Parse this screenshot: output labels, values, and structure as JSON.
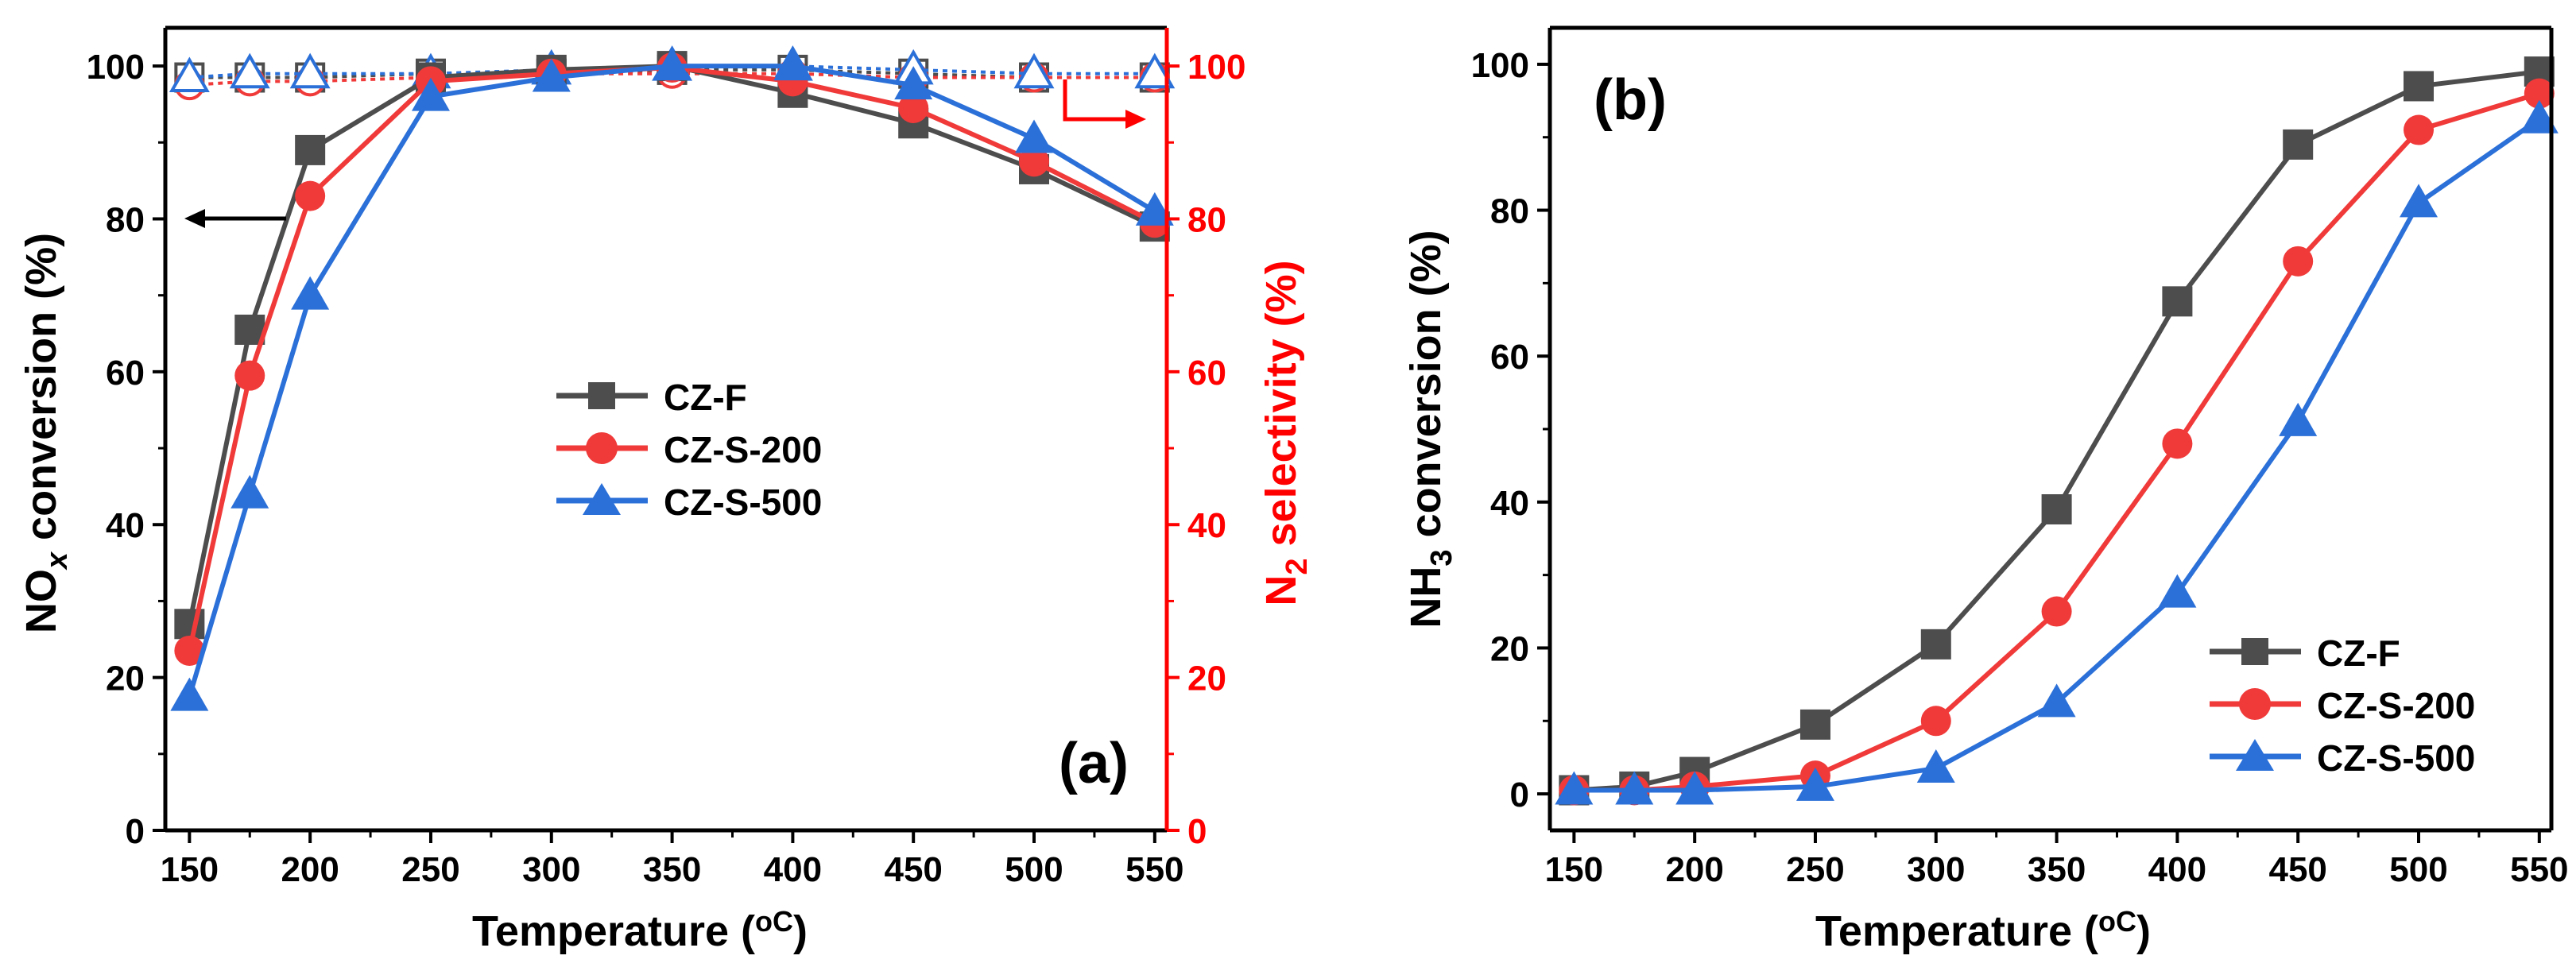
{
  "colors": {
    "axis": "#000000",
    "secondary_axis": "#ff0000",
    "cz_f": "#4d4d4d",
    "cz_s_200": "#f03a3a",
    "cz_s_500": "#2b70d8"
  },
  "chart_data": [
    {
      "type": "line",
      "panel_label": "(a)",
      "xlabel": "Temperature (",
      "xlabel_unit": "oC",
      "xlabel_close": ")",
      "ylabel_prefix": "NO",
      "ylabel_sub": "x",
      "ylabel_suffix": " conversion (%)",
      "y2label_prefix": "N",
      "y2label_sub": "2",
      "y2label_suffix": " selectivity (%)",
      "x": [
        150,
        175,
        200,
        250,
        300,
        350,
        400,
        450,
        500,
        550
      ],
      "xticks": [
        "150",
        "200",
        "250",
        "300",
        "350",
        "400",
        "450",
        "500",
        "550"
      ],
      "yticks": [
        "0",
        "20",
        "40",
        "60",
        "80",
        "100"
      ],
      "y2ticks": [
        "0",
        "20",
        "40",
        "60",
        "80",
        "100"
      ],
      "xlim": [
        140,
        555
      ],
      "ylim": [
        0,
        105
      ],
      "y2lim": [
        0,
        105
      ],
      "legend_position": "center-left",
      "series": [
        {
          "name": "CZ-F",
          "color_key": "cz_f",
          "marker": "square",
          "values": [
            27,
            65.5,
            89,
            98.5,
            99.5,
            100,
            96.5,
            92.5,
            86.5,
            79
          ]
        },
        {
          "name": "CZ-S-200",
          "color_key": "cz_s_200",
          "marker": "circle",
          "values": [
            23.5,
            59.5,
            83,
            98,
            99,
            99.8,
            98,
            94.5,
            87.5,
            79.5
          ]
        },
        {
          "name": "CZ-S-500",
          "color_key": "cz_s_500",
          "marker": "triangle",
          "values": [
            17.5,
            44,
            70,
            96,
            98.5,
            100,
            100,
            97.5,
            90.5,
            81
          ]
        }
      ],
      "secondary_series": [
        {
          "name": "CZ-F N2 selectivity",
          "color_key": "cz_f",
          "marker": "square-open",
          "values": [
            98.5,
            98.5,
            98.5,
            99,
            99,
            99.5,
            99.5,
            99,
            98.5,
            98.5
          ]
        },
        {
          "name": "CZ-S-200 N2 selectivity",
          "color_key": "cz_s_200",
          "marker": "circle-open",
          "values": [
            97.5,
            98,
            98,
            98.5,
            99,
            99,
            99,
            98.5,
            98.5,
            98.5
          ]
        },
        {
          "name": "CZ-S-500 N2 selectivity",
          "color_key": "cz_s_500",
          "marker": "triangle-open",
          "values": [
            98.5,
            99,
            99,
            99,
            99.5,
            100,
            100,
            99.5,
            99,
            99
          ]
        }
      ]
    },
    {
      "type": "line",
      "panel_label": "(b)",
      "xlabel": "Temperature (",
      "xlabel_unit": "oC",
      "xlabel_close": ")",
      "ylabel_prefix": "NH",
      "ylabel_sub": "3",
      "ylabel_suffix": " conversion (%)",
      "x": [
        150,
        175,
        200,
        250,
        300,
        350,
        400,
        450,
        500,
        550
      ],
      "xticks": [
        "150",
        "200",
        "250",
        "300",
        "350",
        "400",
        "450",
        "500",
        "550"
      ],
      "yticks": [
        "0",
        "20",
        "40",
        "60",
        "80",
        "100"
      ],
      "xlim": [
        140,
        555
      ],
      "ylim": [
        -5,
        105
      ],
      "legend_position": "bottom-right",
      "series": [
        {
          "name": "CZ-F",
          "color_key": "cz_f",
          "marker": "square",
          "values": [
            0.5,
            1,
            3,
            9.5,
            20.5,
            39,
            67.5,
            89,
            97,
            99
          ]
        },
        {
          "name": "CZ-S-200",
          "color_key": "cz_s_200",
          "marker": "circle",
          "values": [
            0.5,
            0.5,
            1,
            2.5,
            10,
            25,
            48,
            73,
            91,
            96
          ]
        },
        {
          "name": "CZ-S-500",
          "color_key": "cz_s_500",
          "marker": "triangle",
          "values": [
            0.5,
            0.5,
            0.5,
            1,
            3.5,
            12.5,
            27.5,
            51,
            81,
            92.5
          ]
        }
      ]
    }
  ]
}
